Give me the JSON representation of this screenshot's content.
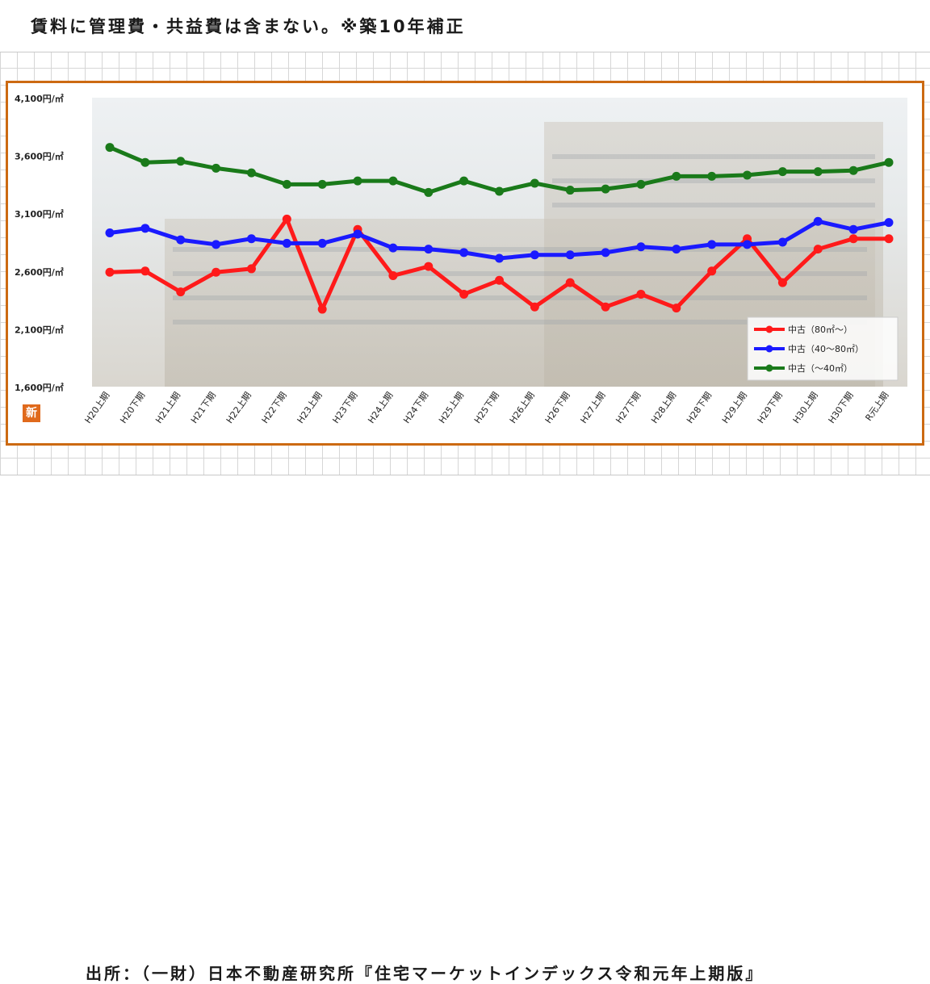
{
  "header": {
    "note": "賃料に管理費・共益費は含まない。※築10年補正"
  },
  "footer": {
    "source": "出所：（一財）日本不動産研究所『住宅マーケットインデックス令和元年上期版』"
  },
  "logo": {
    "text": "新"
  },
  "colors": {
    "frame": "#cc6a12",
    "red": "#ff1a1a",
    "blue": "#1a1aff",
    "green": "#1a7a1a"
  },
  "chart_data": {
    "type": "line",
    "ylim": [
      1600,
      4100
    ],
    "yticks": [
      1600,
      2100,
      2600,
      3100,
      3600,
      4100
    ],
    "ytick_labels": [
      "1,600円/㎡",
      "2,100円/㎡",
      "2,600円/㎡",
      "3,100円/㎡",
      "3,600円/㎡",
      "4,100円/㎡"
    ],
    "categories": [
      "H20上期",
      "H20下期",
      "H21上期",
      "H21下期",
      "H22上期",
      "H22下期",
      "H23上期",
      "H23下期",
      "H24上期",
      "H24下期",
      "H25上期",
      "H25下期",
      "H26上期",
      "H26下期",
      "H27上期",
      "H27下期",
      "H28上期",
      "H28下期",
      "H29上期",
      "H29下期",
      "H30上期",
      "H30下期",
      "R元上期"
    ],
    "series": [
      {
        "name": "中古（80㎡～）",
        "color": "#ff1a1a",
        "values": [
          2590,
          2600,
          2420,
          2590,
          2620,
          3050,
          2270,
          2960,
          2560,
          2640,
          2400,
          2520,
          2290,
          2500,
          2290,
          2400,
          2280,
          2600,
          2880,
          2500,
          2790,
          2880,
          2880
        ]
      },
      {
        "name": "中古（40～80㎡）",
        "color": "#1a1aff",
        "values": [
          2930,
          2970,
          2870,
          2830,
          2880,
          2840,
          2840,
          2920,
          2800,
          2790,
          2760,
          2710,
          2740,
          2740,
          2760,
          2810,
          2790,
          2830,
          2830,
          2850,
          3030,
          2960,
          3020
        ]
      },
      {
        "name": "中古（～40㎡）",
        "color": "#1a7a1a",
        "values": [
          3670,
          3540,
          3550,
          3490,
          3450,
          3350,
          3350,
          3380,
          3380,
          3280,
          3380,
          3290,
          3360,
          3300,
          3310,
          3350,
          3420,
          3420,
          3430,
          3460,
          3460,
          3470,
          3540
        ]
      }
    ],
    "legend_position": "bottom-right",
    "grid": false
  }
}
